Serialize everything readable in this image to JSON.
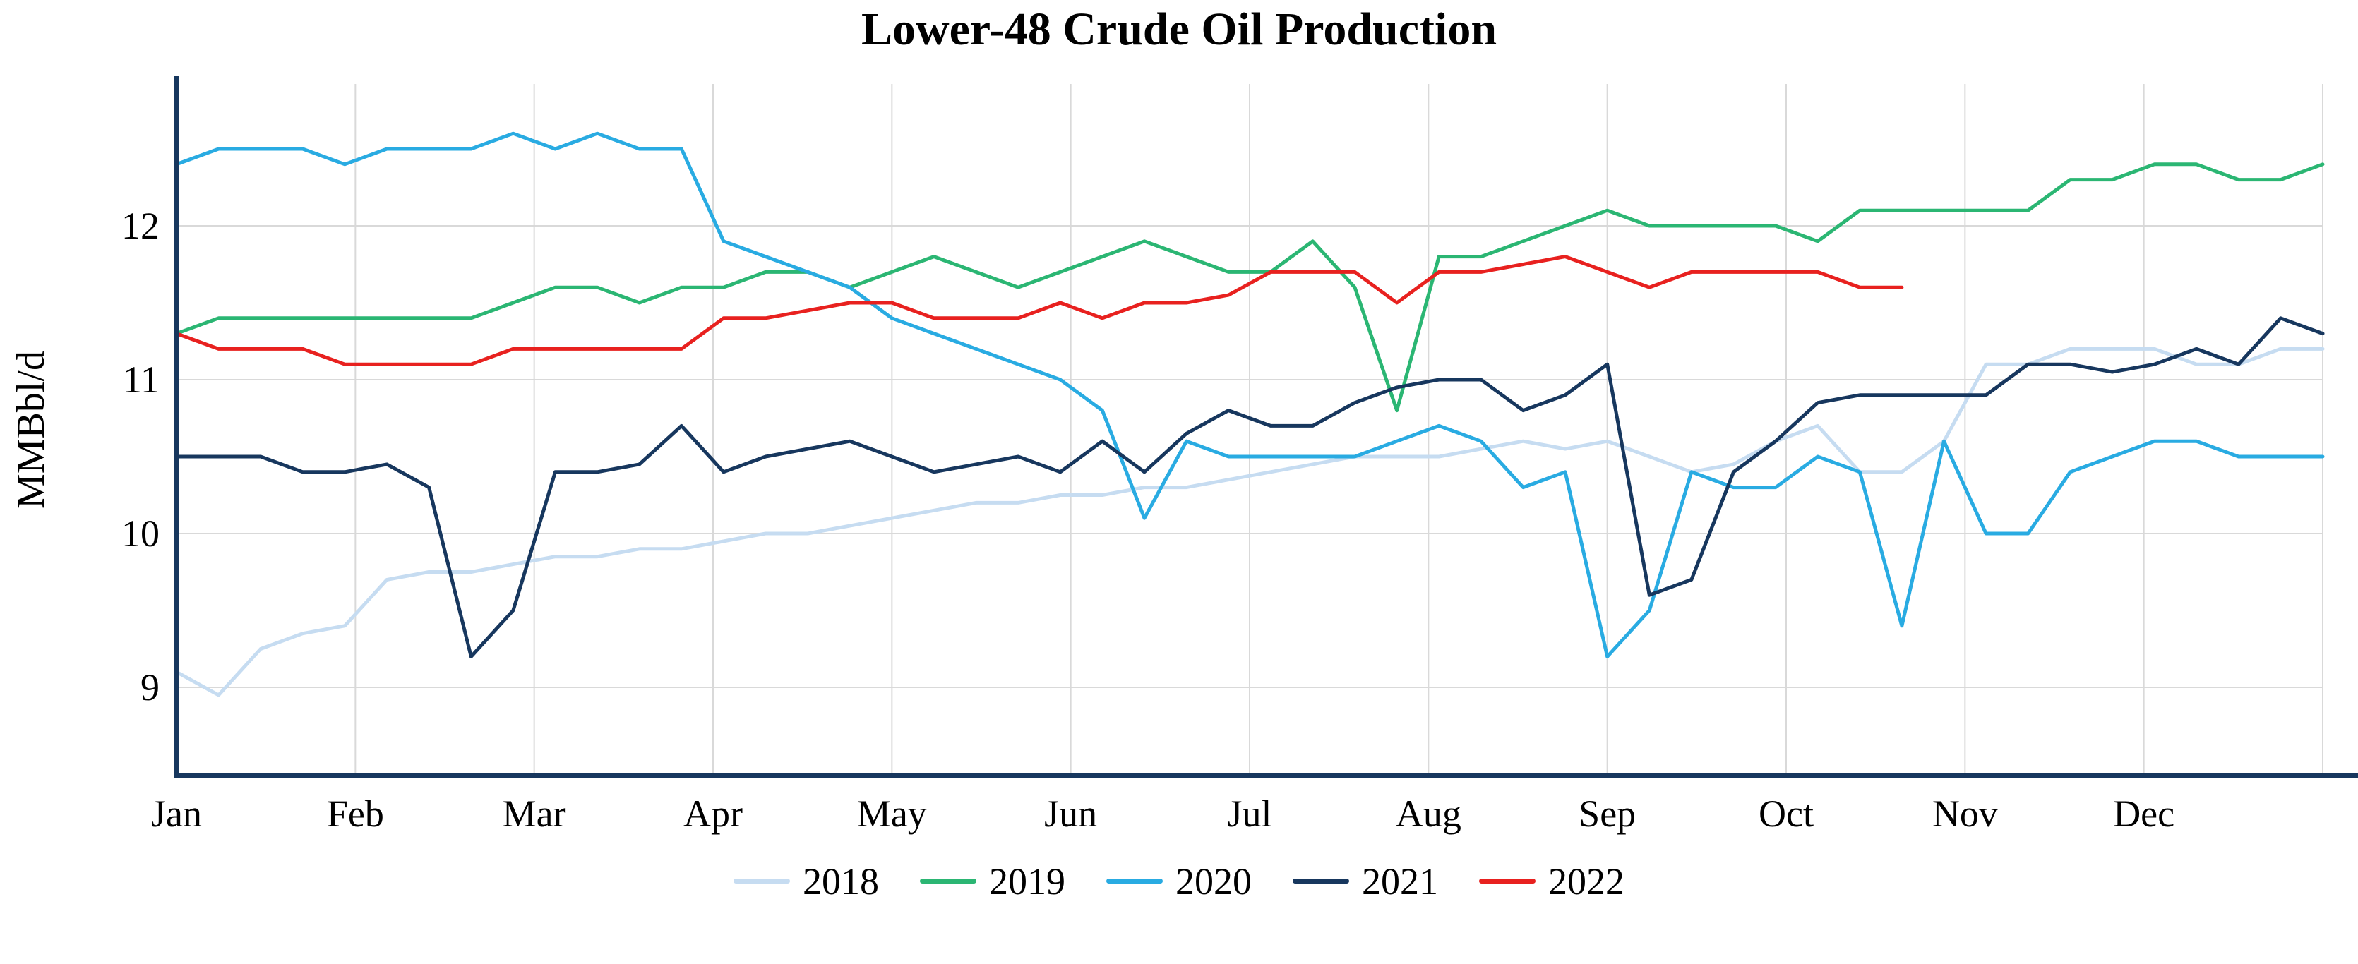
{
  "chart_data": {
    "type": "line",
    "title": "Lower-48 Crude Oil Production",
    "xlabel": "",
    "ylabel": "MMBbl/d",
    "x_unit": "week-of-year",
    "x_tick_labels": [
      "Jan",
      "Feb",
      "Mar",
      "Apr",
      "May",
      "Jun",
      "Jul",
      "Aug",
      "Sep",
      "Oct",
      "Nov",
      "Dec"
    ],
    "y_ticks": [
      9,
      10,
      11,
      12
    ],
    "ylim": [
      8.45,
      12.9
    ],
    "grid": true,
    "legend_position": "bottom",
    "axis_color": "#17375e",
    "grid_color": "#d9d9d9",
    "series": [
      {
        "name": "2018",
        "color": "#c6dcf1",
        "values": [
          9.1,
          8.95,
          9.25,
          9.35,
          9.4,
          9.7,
          9.75,
          9.75,
          9.8,
          9.85,
          9.85,
          9.9,
          9.9,
          9.95,
          10.0,
          10.0,
          10.05,
          10.1,
          10.15,
          10.2,
          10.2,
          10.25,
          10.25,
          10.3,
          10.3,
          10.35,
          10.4,
          10.45,
          10.5,
          10.5,
          10.5,
          10.55,
          10.6,
          10.55,
          10.6,
          10.5,
          10.4,
          10.45,
          10.6,
          10.7,
          10.4,
          10.4,
          10.6,
          11.1,
          11.1,
          11.2,
          11.2,
          11.2,
          11.1,
          11.1,
          11.2,
          11.2
        ]
      },
      {
        "name": "2019",
        "color": "#2bb673",
        "values": [
          11.3,
          11.4,
          11.4,
          11.4,
          11.4,
          11.4,
          11.4,
          11.4,
          11.5,
          11.6,
          11.6,
          11.5,
          11.6,
          11.6,
          11.7,
          11.7,
          11.6,
          11.7,
          11.8,
          11.7,
          11.6,
          11.7,
          11.8,
          11.9,
          11.8,
          11.7,
          11.7,
          11.9,
          11.6,
          10.8,
          11.8,
          11.8,
          11.9,
          12.0,
          12.1,
          12.0,
          12.0,
          12.0,
          12.0,
          11.9,
          12.1,
          12.1,
          12.1,
          12.1,
          12.1,
          12.3,
          12.3,
          12.4,
          12.4,
          12.3,
          12.3,
          12.4
        ]
      },
      {
        "name": "2020",
        "color": "#29abe2",
        "values": [
          12.4,
          12.5,
          12.5,
          12.5,
          12.4,
          12.5,
          12.5,
          12.5,
          12.6,
          12.5,
          12.6,
          12.5,
          12.5,
          11.9,
          11.8,
          11.7,
          11.6,
          11.4,
          11.3,
          11.2,
          11.1,
          11.0,
          10.8,
          10.1,
          10.6,
          10.5,
          10.5,
          10.5,
          10.5,
          10.6,
          10.7,
          10.6,
          10.3,
          10.4,
          9.2,
          9.5,
          10.4,
          10.3,
          10.3,
          10.5,
          10.4,
          9.4,
          10.6,
          10.0,
          10.0,
          10.4,
          10.5,
          10.6,
          10.6,
          10.5,
          10.5,
          10.5
        ]
      },
      {
        "name": "2021",
        "color": "#17375e",
        "values": [
          10.5,
          10.5,
          10.5,
          10.4,
          10.4,
          10.45,
          10.3,
          9.2,
          9.5,
          10.4,
          10.4,
          10.45,
          10.7,
          10.4,
          10.5,
          10.55,
          10.6,
          10.5,
          10.4,
          10.45,
          10.5,
          10.4,
          10.6,
          10.4,
          10.65,
          10.8,
          10.7,
          10.7,
          10.85,
          10.95,
          11.0,
          11.0,
          10.8,
          10.9,
          11.1,
          9.6,
          9.7,
          10.4,
          10.6,
          10.85,
          10.9,
          10.9,
          10.9,
          10.9,
          11.1,
          11.1,
          11.05,
          11.1,
          11.2,
          11.1,
          11.4,
          11.3
        ]
      },
      {
        "name": "2022",
        "color": "#e8211f",
        "values": [
          11.3,
          11.2,
          11.2,
          11.2,
          11.1,
          11.1,
          11.1,
          11.1,
          11.2,
          11.2,
          11.2,
          11.2,
          11.2,
          11.4,
          11.4,
          11.45,
          11.5,
          11.5,
          11.4,
          11.4,
          11.4,
          11.5,
          11.4,
          11.5,
          11.5,
          11.55,
          11.7,
          11.7,
          11.7,
          11.5,
          11.7,
          11.7,
          11.75,
          11.8,
          11.7,
          11.6,
          11.7,
          11.7,
          11.7,
          11.7,
          11.6,
          11.6
        ]
      }
    ]
  }
}
